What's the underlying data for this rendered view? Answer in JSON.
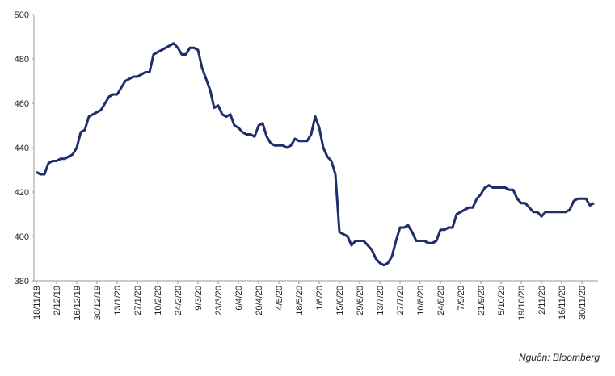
{
  "chart_data": {
    "type": "line",
    "source": "Nguồn: Bloomberg",
    "categories": [
      "18/11/19",
      null,
      null,
      null,
      null,
      "2/12/19",
      null,
      null,
      null,
      null,
      "16/12/19",
      null,
      null,
      null,
      null,
      "30/12/19",
      null,
      null,
      null,
      null,
      "13/1/20",
      null,
      null,
      null,
      null,
      "27/1/20",
      null,
      null,
      null,
      null,
      "10/2/20",
      null,
      null,
      null,
      null,
      "24/2/20",
      null,
      null,
      null,
      null,
      "9/3/20",
      null,
      null,
      null,
      null,
      "23/3/20",
      null,
      null,
      null,
      null,
      "6/4/20",
      null,
      null,
      null,
      null,
      "20/4/20",
      null,
      null,
      null,
      null,
      "4/5/20",
      null,
      null,
      null,
      null,
      "18/5/20",
      null,
      null,
      null,
      null,
      "1/6/20",
      null,
      null,
      null,
      null,
      "15/6/20",
      null,
      null,
      null,
      null,
      "29/6/20",
      null,
      null,
      null,
      null,
      "13/7/20",
      null,
      null,
      null,
      null,
      "27/7/20",
      null,
      null,
      null,
      null,
      "10/8/20",
      null,
      null,
      null,
      null,
      "24/8/20",
      null,
      null,
      null,
      null,
      "7/9/20",
      null,
      null,
      null,
      null,
      "21/9/20",
      null,
      null,
      null,
      null,
      "5/10/20",
      null,
      null,
      null,
      null,
      "19/10/20",
      null,
      null,
      null,
      null,
      "2/11/20",
      null,
      null,
      null,
      null,
      "16/11/20",
      null,
      null,
      null,
      null,
      "30/11/20",
      null,
      null,
      null
    ],
    "values": [
      429,
      428,
      428,
      433,
      434,
      434,
      435,
      435,
      436,
      437,
      440,
      447,
      448,
      454,
      455,
      456,
      457,
      460,
      463,
      464,
      464,
      467,
      470,
      471,
      472,
      472,
      473,
      474,
      474,
      482,
      483,
      484,
      485,
      486,
      487,
      485,
      482,
      482,
      485,
      485,
      484,
      476,
      471,
      466,
      458,
      459,
      455,
      454,
      455,
      450,
      449,
      447,
      446,
      446,
      445,
      450,
      451,
      445,
      442,
      441,
      441,
      441,
      440,
      441,
      444,
      443,
      443,
      443,
      446,
      454,
      449,
      440,
      436,
      434,
      428,
      402,
      401,
      400,
      396,
      398,
      398,
      398,
      396,
      394,
      390,
      388,
      387,
      388,
      391,
      398,
      404,
      404,
      405,
      402,
      398,
      398,
      398,
      397,
      397,
      398,
      403,
      403,
      404,
      404,
      410,
      411,
      412,
      413,
      413,
      417,
      419,
      422,
      423,
      422,
      422,
      422,
      422,
      421,
      421,
      417,
      415,
      415,
      413,
      411,
      411,
      409,
      411,
      411,
      411,
      411,
      411,
      411,
      412,
      416,
      417,
      417,
      417,
      414,
      415
    ],
    "color": "#1f2d6b",
    "ylim": [
      380,
      500
    ],
    "yticks": [
      380,
      400,
      420,
      440,
      460,
      480,
      500
    ],
    "grid": false
  }
}
